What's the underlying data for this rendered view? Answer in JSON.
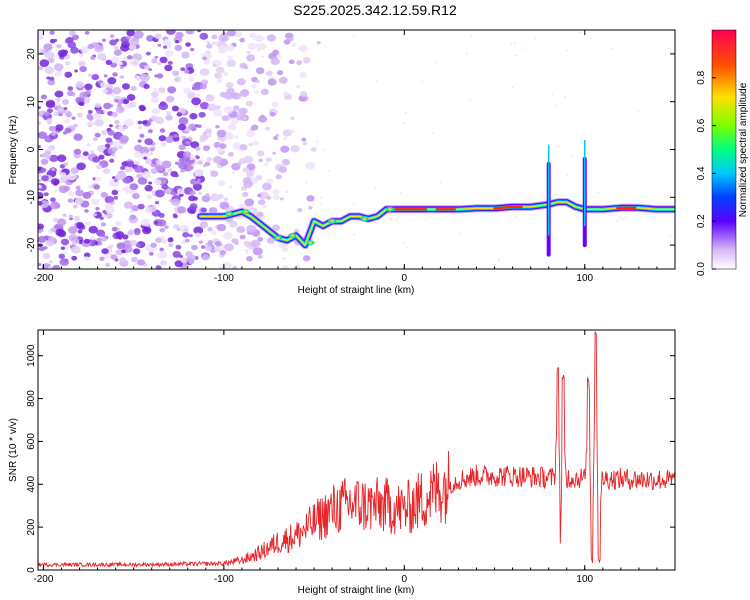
{
  "title": "S225.2025.342.12.59.R12",
  "chart_data": [
    {
      "type": "heatmap",
      "xlabel": "Height of straight line (km)",
      "ylabel": "Frequency (Hz)",
      "xlim": [
        -203,
        150
      ],
      "ylim": [
        -25,
        25
      ],
      "xticks": [
        -200,
        -100,
        0,
        100
      ],
      "yticks": [
        -20,
        -10,
        0,
        10,
        20
      ],
      "colorbar": {
        "label": "Normalized spectral amplitude",
        "ticks": [
          "0.0",
          "0.2",
          "0.4",
          "0.6",
          "0.8"
        ],
        "range": [
          0,
          1
        ]
      },
      "signal_track": {
        "x": [
          -113,
          -100,
          -95,
          -90,
          -85,
          -80,
          -75,
          -70,
          -65,
          -60,
          -55,
          -50,
          -45,
          -40,
          -35,
          -30,
          -25,
          -20,
          -15,
          -10,
          -5,
          0,
          10,
          20,
          30,
          40,
          50,
          60,
          70,
          80,
          85,
          90,
          95,
          100,
          105,
          110,
          120,
          130,
          140,
          150
        ],
        "freq": [
          -14,
          -14,
          -13.5,
          -13,
          -14,
          -15.5,
          -17,
          -18.5,
          -19,
          -18,
          -20,
          -15,
          -16,
          -15,
          -15,
          -14,
          -14,
          -14.5,
          -14,
          -12.5,
          -12.5,
          -12.5,
          -12.5,
          -12.5,
          -12.5,
          -12.3,
          -12.3,
          -12,
          -12,
          -11.5,
          -11,
          -11,
          -12,
          -12.5,
          -12.5,
          -12.5,
          -12.2,
          -12.2,
          -12.5,
          -12.5
        ]
      }
    },
    {
      "type": "line",
      "xlabel": "Height of straight line (km)",
      "ylabel": "SNR (10 * v/v)",
      "xlim": [
        -203,
        150
      ],
      "ylim": [
        0,
        1120
      ],
      "xticks": [
        -200,
        -100,
        0,
        100
      ],
      "yticks": [
        0,
        200,
        400,
        600,
        800,
        1000
      ],
      "color": "#e8262a",
      "trend": {
        "x": [
          -203,
          -150,
          -100,
          -90,
          -80,
          -70,
          -60,
          -50,
          -40,
          -30,
          -20,
          -10,
          0,
          10,
          20,
          30,
          40,
          60,
          80,
          100,
          120,
          150
        ],
        "snr": [
          25,
          25,
          30,
          45,
          80,
          130,
          160,
          220,
          280,
          310,
          300,
          300,
          280,
          330,
          380,
          420,
          440,
          440,
          430,
          430,
          425,
          420
        ]
      },
      "spikes": [
        {
          "x": 85,
          "snr": 960
        },
        {
          "x": 87,
          "snr": 130
        },
        {
          "x": 88,
          "snr": 930
        },
        {
          "x": 102,
          "snr": 900
        },
        {
          "x": 104,
          "snr": 60
        },
        {
          "x": 106,
          "snr": 1120
        },
        {
          "x": 108,
          "snr": 60
        }
      ]
    }
  ]
}
